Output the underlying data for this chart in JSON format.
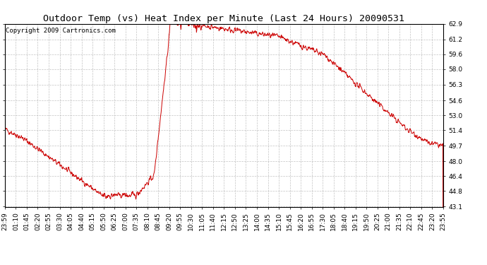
{
  "title": "Outdoor Temp (vs) Heat Index per Minute (Last 24 Hours) 20090531",
  "copyright_text": "Copyright 2009 Cartronics.com",
  "line_color": "#cc0000",
  "bg_color": "#ffffff",
  "plot_bg_color": "#ffffff",
  "grid_color": "#aaaaaa",
  "yticks": [
    43.1,
    44.8,
    46.4,
    48.0,
    49.7,
    51.4,
    53.0,
    54.6,
    56.3,
    58.0,
    59.6,
    61.2,
    62.9
  ],
  "xtick_labels": [
    "23:59",
    "01:10",
    "01:45",
    "02:20",
    "02:55",
    "03:30",
    "04:05",
    "04:40",
    "05:15",
    "05:50",
    "06:25",
    "07:00",
    "07:35",
    "08:10",
    "08:45",
    "09:20",
    "09:55",
    "10:30",
    "11:05",
    "11:40",
    "12:15",
    "12:50",
    "13:25",
    "14:00",
    "14:35",
    "15:10",
    "15:45",
    "16:20",
    "16:55",
    "17:30",
    "18:05",
    "18:40",
    "19:15",
    "19:50",
    "20:25",
    "21:00",
    "21:35",
    "22:10",
    "22:45",
    "23:20",
    "23:55"
  ],
  "ymin": 43.1,
  "ymax": 62.9,
  "title_fontsize": 9.5,
  "copyright_fontsize": 6.5,
  "tick_fontsize": 6.5
}
